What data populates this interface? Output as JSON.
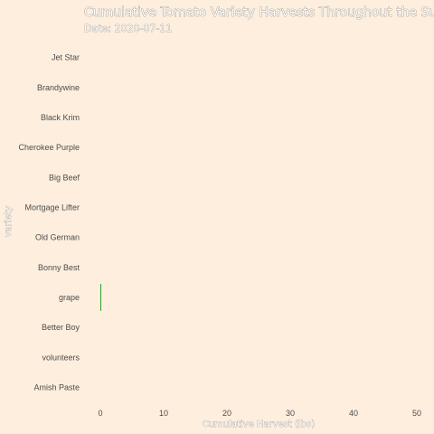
{
  "chart_data": {
    "type": "bar",
    "orientation": "horizontal",
    "title": "Cumulative Tomato Variety Harvests Throughout the Summer",
    "subtitle": "Date: 2020-07-11",
    "xlabel": "Cumulative Harvest (lbs)",
    "ylabel": "variety",
    "xlim": [
      -2,
      51
    ],
    "xticks": [
      0,
      10,
      20,
      30,
      40,
      50
    ],
    "grid": false,
    "legend": "none",
    "categories": [
      "Jet Star",
      "Brandywine",
      "Black Krim",
      "Cherokee Purple",
      "Big Beef",
      "Mortgage Lifter",
      "Old German",
      "Bonny Best",
      "grape",
      "Better Boy",
      "volunteers",
      "Amish Paste"
    ],
    "values": [
      0,
      0,
      0,
      0,
      0,
      0,
      0,
      0,
      0.1,
      0,
      0,
      0
    ],
    "bar_color": "#2ca02c"
  }
}
